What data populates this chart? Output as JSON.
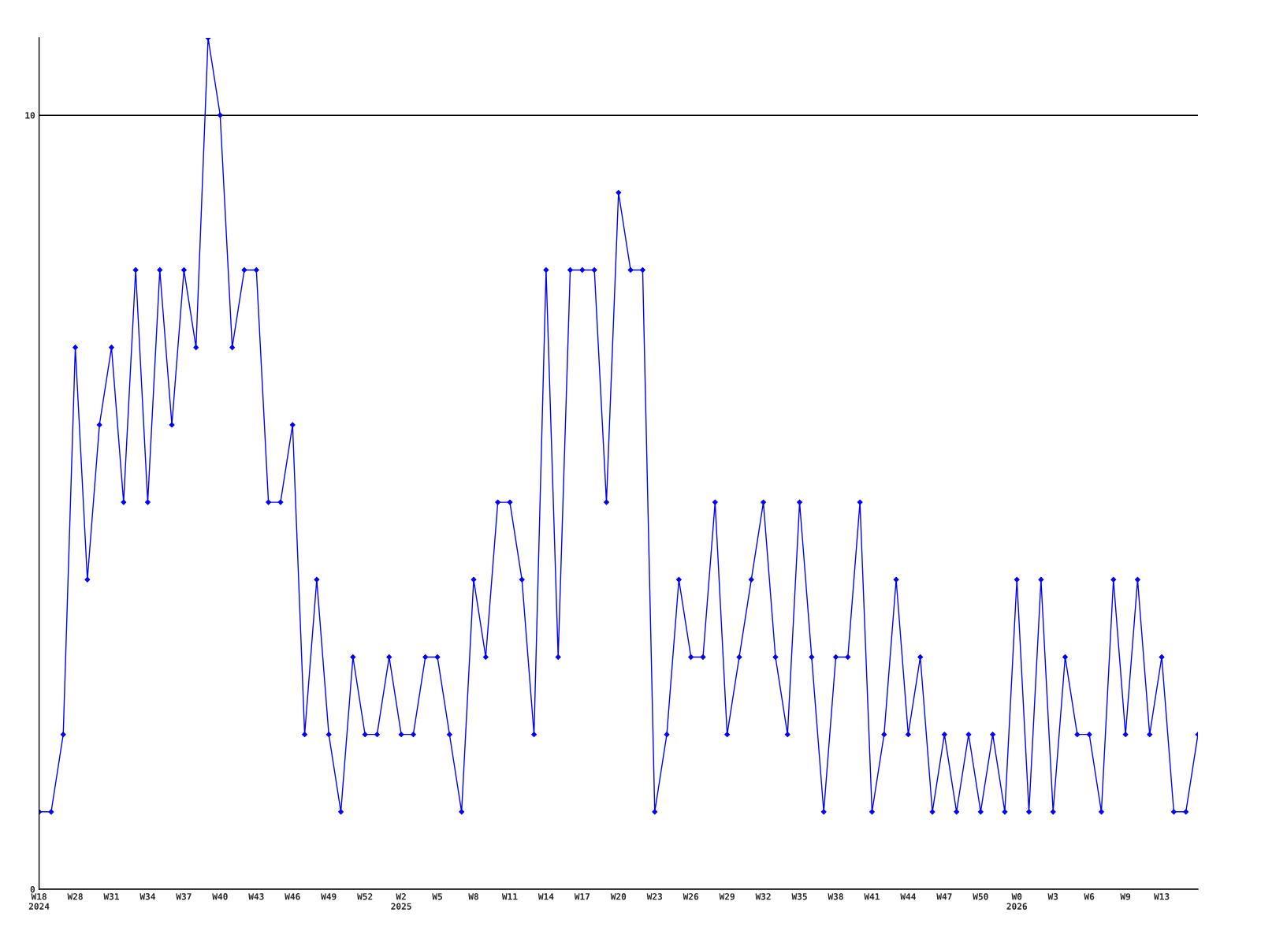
{
  "chart_data": {
    "type": "line",
    "categories": [
      "W18\n2024",
      null,
      null,
      "W28",
      null,
      null,
      "W31",
      null,
      null,
      "W34",
      null,
      null,
      "W37",
      null,
      null,
      "W40",
      null,
      null,
      "W43",
      null,
      null,
      "W46",
      null,
      null,
      "W49",
      null,
      null,
      "W52",
      null,
      null,
      "W2\n2025",
      null,
      null,
      "W5",
      null,
      null,
      "W8",
      null,
      null,
      "W11",
      null,
      null,
      "W14",
      null,
      null,
      "W17",
      null,
      null,
      "W20",
      null,
      null,
      "W23",
      null,
      null,
      "W26",
      null,
      null,
      "W29",
      null,
      null,
      "W32",
      null,
      null,
      "W35",
      null,
      null,
      "W38",
      null,
      null,
      "W41",
      null,
      null,
      "W44",
      null,
      null,
      "W47",
      null,
      null,
      "W50",
      null,
      null,
      "W0\n2026",
      null,
      null,
      "W3",
      null,
      null,
      "W6",
      null,
      null,
      "W9",
      null,
      null,
      "W13",
      null,
      null,
      null
    ],
    "series": [
      {
        "color": "#0000ff",
        "values": [
          1,
          1,
          2,
          7,
          4,
          6,
          7,
          5,
          8,
          5,
          8,
          6,
          8,
          7,
          11,
          10,
          7,
          8,
          8,
          5,
          5,
          6,
          2,
          4,
          2,
          1,
          3,
          2,
          2,
          3,
          2,
          2,
          3,
          3,
          2,
          1,
          4,
          3,
          5,
          5,
          4,
          2,
          8,
          3,
          8,
          8,
          8,
          5,
          9,
          8,
          8,
          1,
          2,
          4,
          3,
          3,
          5,
          2,
          3,
          4,
          5,
          3,
          2,
          5,
          3,
          1,
          3,
          3,
          5,
          1,
          2,
          4,
          2,
          3,
          1,
          2,
          1,
          2,
          1,
          2,
          1,
          4,
          1,
          4,
          1,
          3,
          2,
          2,
          1,
          4,
          2,
          4,
          2,
          3,
          1,
          1,
          2
        ]
      }
    ],
    "ylim": [
      0,
      11
    ],
    "yticks": [
      0,
      10
    ],
    "grid": "y",
    "marker": "diamond",
    "line_style": "solid"
  }
}
